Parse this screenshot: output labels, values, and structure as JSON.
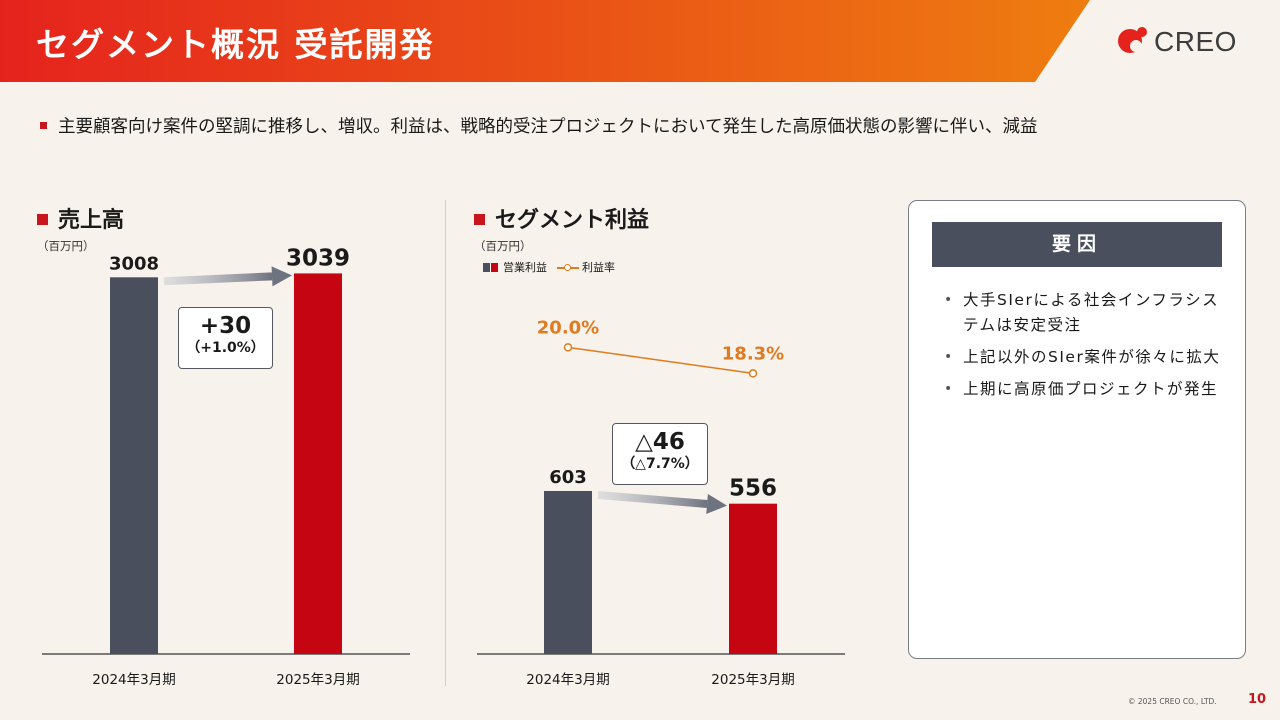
{
  "header": {
    "title": "セグメント概況 受託開発",
    "logo_text": "CREO",
    "gradient_start": "#e5231d",
    "gradient_end": "#ee7d10"
  },
  "lead_text": "主要顧客向け案件の堅調に推移し、増収。利益は、戦略的受注プロジェクトにおいて発生した高原価状態の影響に伴い、減益",
  "revenue": {
    "section_title": "売上高",
    "unit": "（百万円）",
    "delta_main": "+30",
    "delta_sub": "（+1.0%）"
  },
  "profit": {
    "section_title": "セグメント利益",
    "unit": "（百万円）",
    "legend_bar": "営業利益",
    "legend_line": "利益率",
    "delta_main": "△46",
    "delta_sub": "（△7.7%）"
  },
  "chart_data": [
    {
      "type": "bar",
      "title": "売上高",
      "ylabel": "（百万円）",
      "categories": [
        "2024年3月期",
        "2025年3月期"
      ],
      "values": [
        3008,
        3039
      ],
      "value_labels": [
        "3008",
        "3039"
      ],
      "colors": [
        "#4a4f5e",
        "#c50512"
      ],
      "ylim": [
        0,
        3250
      ]
    },
    {
      "type": "bar",
      "title": "セグメント利益",
      "ylabel": "（百万円）",
      "categories": [
        "2024年3月期",
        "2025年3月期"
      ],
      "values": [
        603,
        556
      ],
      "value_labels": [
        "603",
        "556"
      ],
      "colors": [
        "#4a4f5e",
        "#c50512"
      ],
      "ylim": [
        0,
        1080
      ],
      "series": [
        {
          "name": "営業利益",
          "values": [
            603,
            556
          ]
        },
        {
          "name": "利益率",
          "type": "line",
          "values": [
            20.0,
            18.3
          ],
          "labels": [
            "20.0%",
            "18.3%"
          ],
          "color": "#e07b1f"
        }
      ],
      "line_ylim": [
        0,
        27
      ]
    }
  ],
  "factors": {
    "title": "要因",
    "items": [
      "大手SIerによる社会インフラシステムは安定受注",
      "上記以外のSIer案件が徐々に拡大",
      "上期に高原価プロジェクトが発生"
    ]
  },
  "footer": {
    "copyright": "© 2025 CREO CO., LTD.",
    "page": "10"
  }
}
